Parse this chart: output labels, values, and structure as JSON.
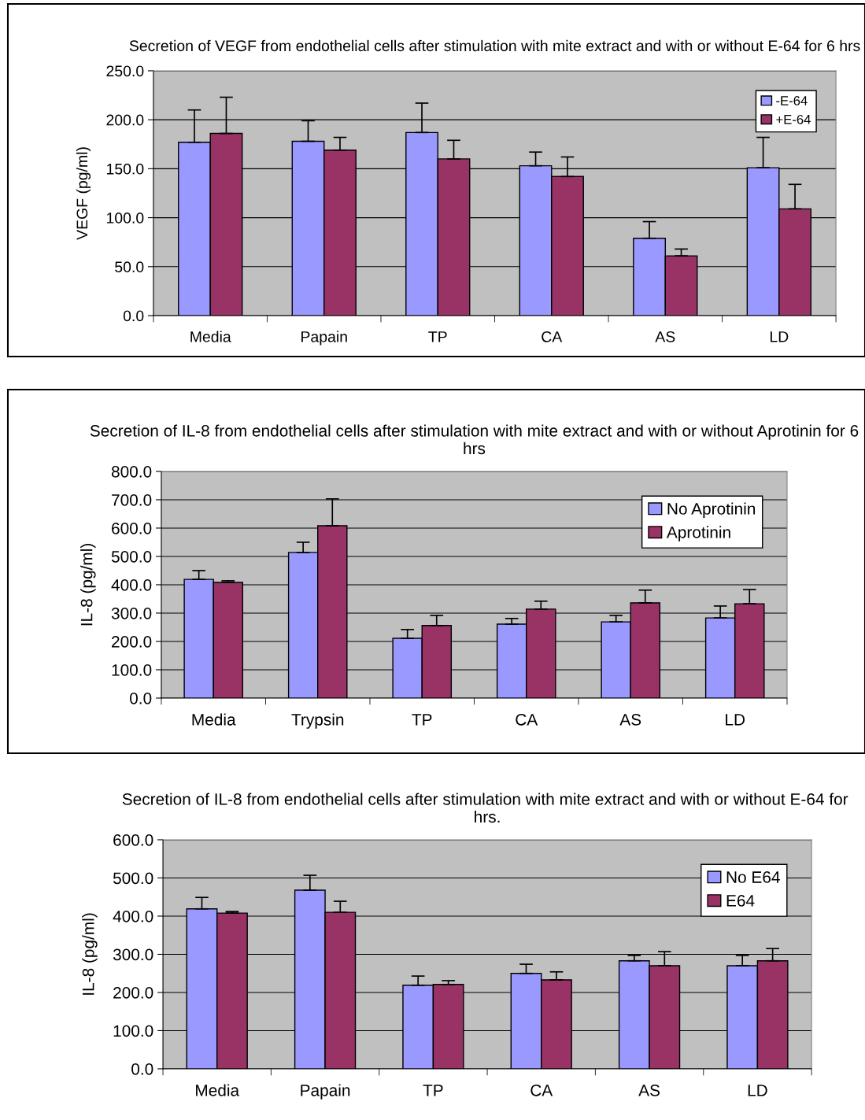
{
  "chart_data": [
    {
      "type": "bar",
      "title": "Secretion of VEGF from endothelial cells after stimulation with mite extract and with or without E-64 for 6 hrs",
      "ylabel": "VEGF (pg/ml)",
      "categories": [
        "Media",
        "Papain",
        "TP",
        "CA",
        "AS",
        "LD"
      ],
      "series": [
        {
          "name": "-E-64",
          "color": "#9999ff",
          "values": [
            177,
            178,
            187,
            153,
            79,
            151
          ],
          "errors": [
            [
              177,
              210
            ],
            [
              178,
              199
            ],
            [
              187,
              217
            ],
            [
              153,
              167
            ],
            [
              79,
              96
            ],
            [
              151,
              182
            ]
          ]
        },
        {
          "name": "+E-64",
          "color": "#993366",
          "values": [
            186,
            169,
            160,
            142,
            61,
            109
          ],
          "errors": [
            [
              186,
              223
            ],
            [
              169,
              182
            ],
            [
              160,
              179
            ],
            [
              142,
              162
            ],
            [
              61,
              68
            ],
            [
              109,
              134
            ]
          ]
        }
      ],
      "ylim": [
        0,
        250
      ],
      "yticks": [
        {
          "value": 0,
          "label": "0.0"
        },
        {
          "value": 50,
          "label": "50.0"
        },
        {
          "value": 100,
          "label": "100.0"
        },
        {
          "value": 150,
          "label": "150.0"
        },
        {
          "value": 200,
          "label": "200.0"
        },
        {
          "value": 250,
          "label": "250.0"
        }
      ],
      "grid": "y",
      "legend": "top right"
    },
    {
      "type": "bar",
      "title": "Secretion of IL-8 from endothelial cells after stimulation with mite extract and with or without Aprotinin for 6 hrs",
      "ylabel": "IL-8 (pg/ml)",
      "categories": [
        "Media",
        "Trypsin",
        "TP",
        "CA",
        "AS",
        "LD"
      ],
      "series": [
        {
          "name": "No Aprotinin",
          "color": "#9999ff",
          "values": [
            419,
            514,
            211,
            261,
            269,
            283
          ],
          "errors": [
            [
              419,
              450
            ],
            [
              514,
              550
            ],
            [
              211,
              242
            ],
            [
              261,
              281
            ],
            [
              269,
              292
            ],
            [
              283,
              325
            ]
          ]
        },
        {
          "name": "Aprotinin",
          "color": "#993366",
          "values": [
            408,
            608,
            256,
            314,
            336,
            333
          ],
          "errors": [
            [
              408,
              414
            ],
            [
              608,
              703
            ],
            [
              256,
              292
            ],
            [
              314,
              342
            ],
            [
              336,
              381
            ],
            [
              333,
              383
            ]
          ]
        }
      ],
      "ylim": [
        0,
        800
      ],
      "yticks": [
        {
          "value": 0,
          "label": "0.0"
        },
        {
          "value": 100,
          "label": "100.0"
        },
        {
          "value": 200,
          "label": "200.0"
        },
        {
          "value": 300,
          "label": "300.0"
        },
        {
          "value": 400,
          "label": "400.0"
        },
        {
          "value": 500,
          "label": "500.0"
        },
        {
          "value": 600,
          "label": "600.0"
        },
        {
          "value": 700,
          "label": "700.0"
        },
        {
          "value": 800,
          "label": "800.0"
        }
      ],
      "grid": "y",
      "legend": "top right"
    },
    {
      "type": "bar",
      "title": "Secretion of IL-8 from endothelial cells after stimulation with mite extract and with or without E-64 for  hrs.",
      "ylabel": "IL-8 (pg/ml)",
      "categories": [
        "Media",
        "Papain",
        "TP",
        "CA",
        "AS",
        "LD"
      ],
      "series": [
        {
          "name": "No E64",
          "color": "#9999ff",
          "values": [
            419,
            468,
            219,
            250,
            283,
            270
          ],
          "errors": [
            [
              419,
              449
            ],
            [
              468,
              507
            ],
            [
              219,
              243
            ],
            [
              250,
              274
            ],
            [
              283,
              297
            ],
            [
              270,
              297
            ]
          ]
        },
        {
          "name": "E64",
          "color": "#993366",
          "values": [
            408,
            410,
            221,
            233,
            270,
            283
          ],
          "errors": [
            [
              408,
              412
            ],
            [
              410,
              439
            ],
            [
              221,
              231
            ],
            [
              233,
              254
            ],
            [
              270,
              307
            ],
            [
              283,
              315
            ]
          ]
        }
      ],
      "ylim": [
        0,
        600
      ],
      "yticks": [
        {
          "value": 0,
          "label": "0.0"
        },
        {
          "value": 100,
          "label": "100.0"
        },
        {
          "value": 200,
          "label": "200.0"
        },
        {
          "value": 300,
          "label": "300.0"
        },
        {
          "value": 400,
          "label": "400.0"
        },
        {
          "value": 500,
          "label": "500.0"
        },
        {
          "value": 600,
          "label": "600.0"
        }
      ],
      "grid": "y",
      "legend": "top right"
    }
  ]
}
